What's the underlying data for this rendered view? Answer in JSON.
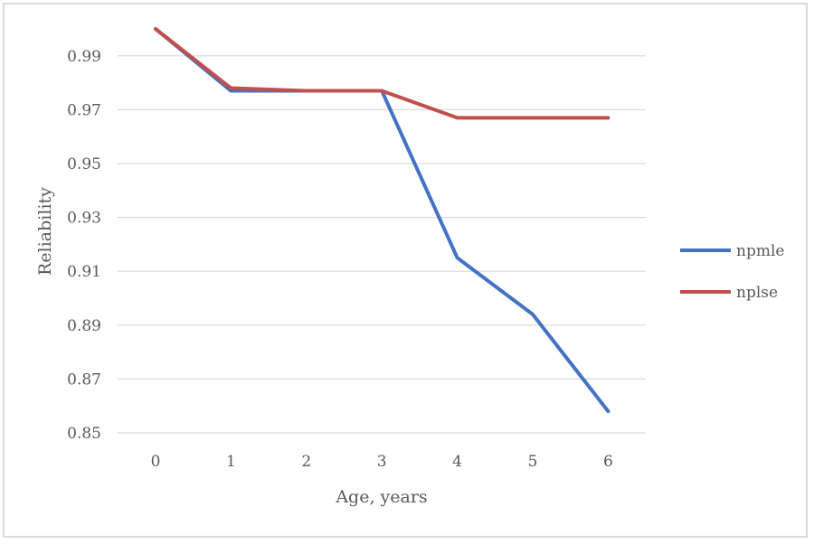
{
  "chart_data": {
    "type": "line",
    "x": [
      0,
      1,
      2,
      3,
      4,
      5,
      6
    ],
    "xticks": [
      "0",
      "1",
      "2",
      "3",
      "4",
      "5",
      "6"
    ],
    "yticks": [
      "0.85",
      "0.87",
      "0.89",
      "0.91",
      "0.93",
      "0.95",
      "0.97",
      "0.99"
    ],
    "ylim": [
      0.85,
      1.0
    ],
    "xlabel": "Age, years",
    "ylabel": "Reliability",
    "grid": "horizontal",
    "legend": "right",
    "series": [
      {
        "name": "npmle",
        "color": "#4472c4",
        "values": [
          1.0,
          0.977,
          0.977,
          0.977,
          0.915,
          0.894,
          0.858
        ]
      },
      {
        "name": "nplse",
        "color": "#c0504d",
        "values": [
          1.0,
          0.978,
          0.977,
          0.977,
          0.967,
          0.967,
          0.967
        ]
      }
    ]
  }
}
